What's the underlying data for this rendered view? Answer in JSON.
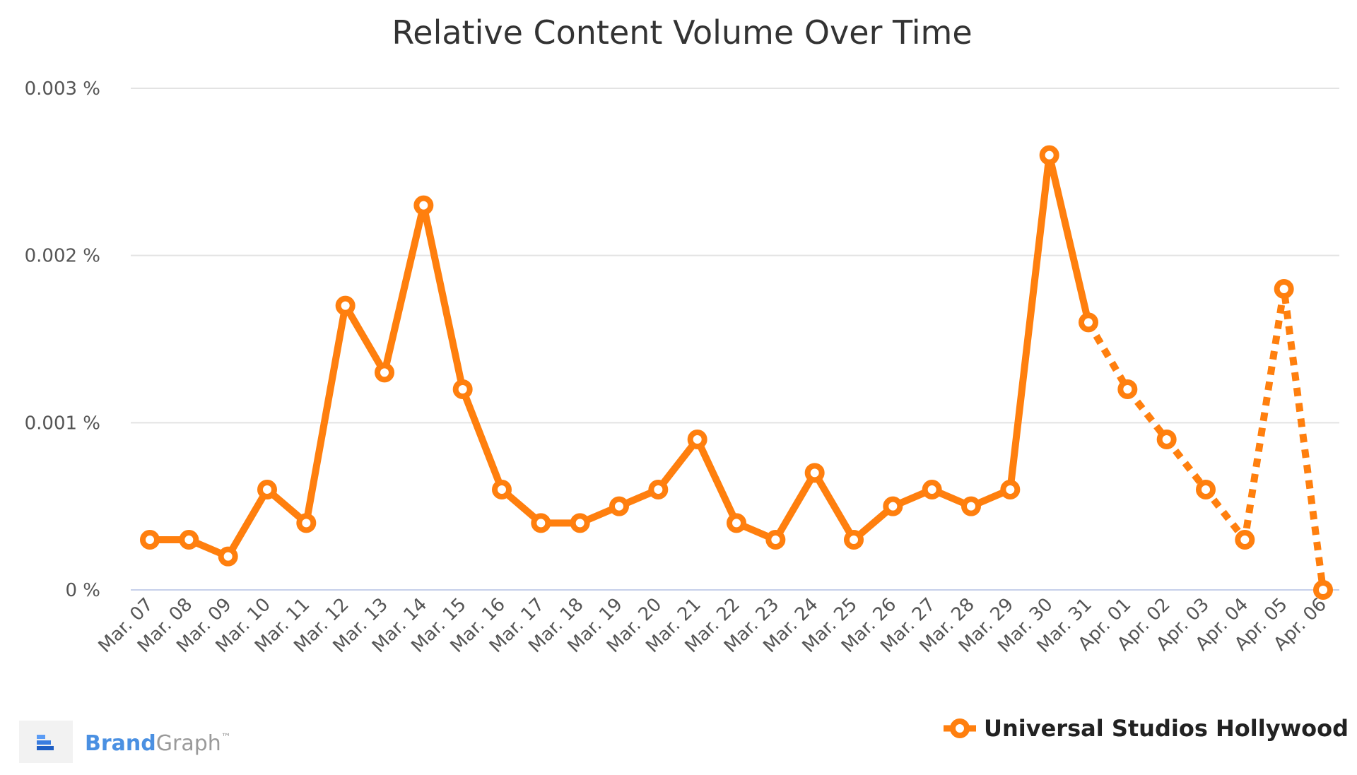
{
  "chart_data": {
    "type": "line",
    "title": "Relative Content Volume Over Time",
    "xlabel": "",
    "ylabel": "",
    "categories": [
      "Mar. 07",
      "Mar. 08",
      "Mar. 09",
      "Mar. 10",
      "Mar. 11",
      "Mar. 12",
      "Mar. 13",
      "Mar. 14",
      "Mar. 15",
      "Mar. 16",
      "Mar. 17",
      "Mar. 18",
      "Mar. 19",
      "Mar. 20",
      "Mar. 21",
      "Mar. 22",
      "Mar. 23",
      "Mar. 24",
      "Mar. 25",
      "Mar. 26",
      "Mar. 27",
      "Mar. 28",
      "Mar. 29",
      "Mar. 30",
      "Mar. 31",
      "Apr. 01",
      "Apr. 02",
      "Apr. 03",
      "Apr. 04",
      "Apr. 05",
      "Apr. 06"
    ],
    "series": [
      {
        "name": "Universal Studios Hollywood",
        "color": "#ff7f0e",
        "values": [
          0.0003,
          0.0003,
          0.0002,
          0.0006,
          0.0004,
          0.0017,
          0.0013,
          0.0023,
          0.0012,
          0.0006,
          0.0004,
          0.0004,
          0.0005,
          0.0006,
          0.0009,
          0.0004,
          0.0003,
          0.0007,
          0.0003,
          0.0005,
          0.0006,
          0.0005,
          0.0006,
          0.0026,
          0.0016,
          0.0012,
          0.0009,
          0.0006,
          0.0003,
          0.0018,
          0.0
        ],
        "dashed_from": "Mar. 31"
      }
    ],
    "yticks": [
      "0.003 %",
      "0.002 %",
      "0.001 %",
      "0 %"
    ],
    "ytick_values": [
      0.003,
      0.002,
      0.001,
      0
    ],
    "ylim": [
      0,
      0.003
    ],
    "grid": true,
    "legend_position": "bottom-right"
  },
  "branding": {
    "brand_bold": "Brand",
    "brand_light": "Graph",
    "trademark": "™",
    "brand_color": "#4a90e2"
  }
}
